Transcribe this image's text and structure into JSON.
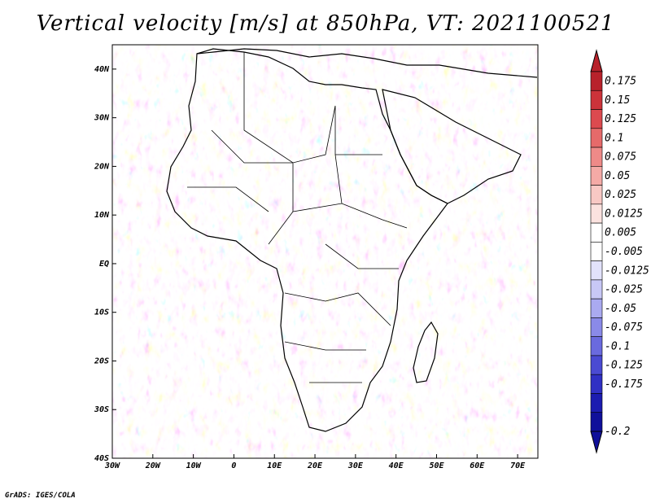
{
  "title": "Vertical velocity [m/s] at 850hPa, VT: 2021100521",
  "credit": "GrADS: IGES/COLA",
  "map": {
    "lon_range": [
      -30,
      75
    ],
    "lat_range": [
      -40,
      45
    ],
    "lat_labels": [
      "40N",
      "30N",
      "20N",
      "10N",
      "EQ",
      "10S",
      "20S",
      "30S",
      "40S"
    ],
    "lat_values": [
      40,
      30,
      20,
      10,
      0,
      -10,
      -20,
      -30,
      -40
    ],
    "lon_labels": [
      "30W",
      "20W",
      "10W",
      "0",
      "10E",
      "20E",
      "30E",
      "40E",
      "50E",
      "60E",
      "70E"
    ],
    "lon_values": [
      -30,
      -20,
      -10,
      0,
      10,
      20,
      30,
      40,
      50,
      60,
      70
    ]
  },
  "colorbar": {
    "labels": [
      "0.175",
      "0.15",
      "0.125",
      "0.1",
      "0.075",
      "0.05",
      "0.025",
      "0.0125",
      "0.005",
      "-0.005",
      "-0.0125",
      "-0.025",
      "-0.05",
      "-0.075",
      "-0.1",
      "-0.125",
      "-0.175",
      "-0.2"
    ],
    "colors": [
      "#b8222b",
      "#cc333a",
      "#dc4a4f",
      "#e66a6a",
      "#ee8a88",
      "#f4aaa6",
      "#f8c8c4",
      "#fbe2df",
      "#ffffff",
      "#ffffff",
      "#e2e2fb",
      "#c8c8f6",
      "#aaaaf0",
      "#8a8ae8",
      "#6a6ade",
      "#4a4ad2",
      "#3030c4",
      "#1c1cb0",
      "#10109a"
    ],
    "top_color": "#b8222b",
    "bottom_color": "#10109a"
  }
}
